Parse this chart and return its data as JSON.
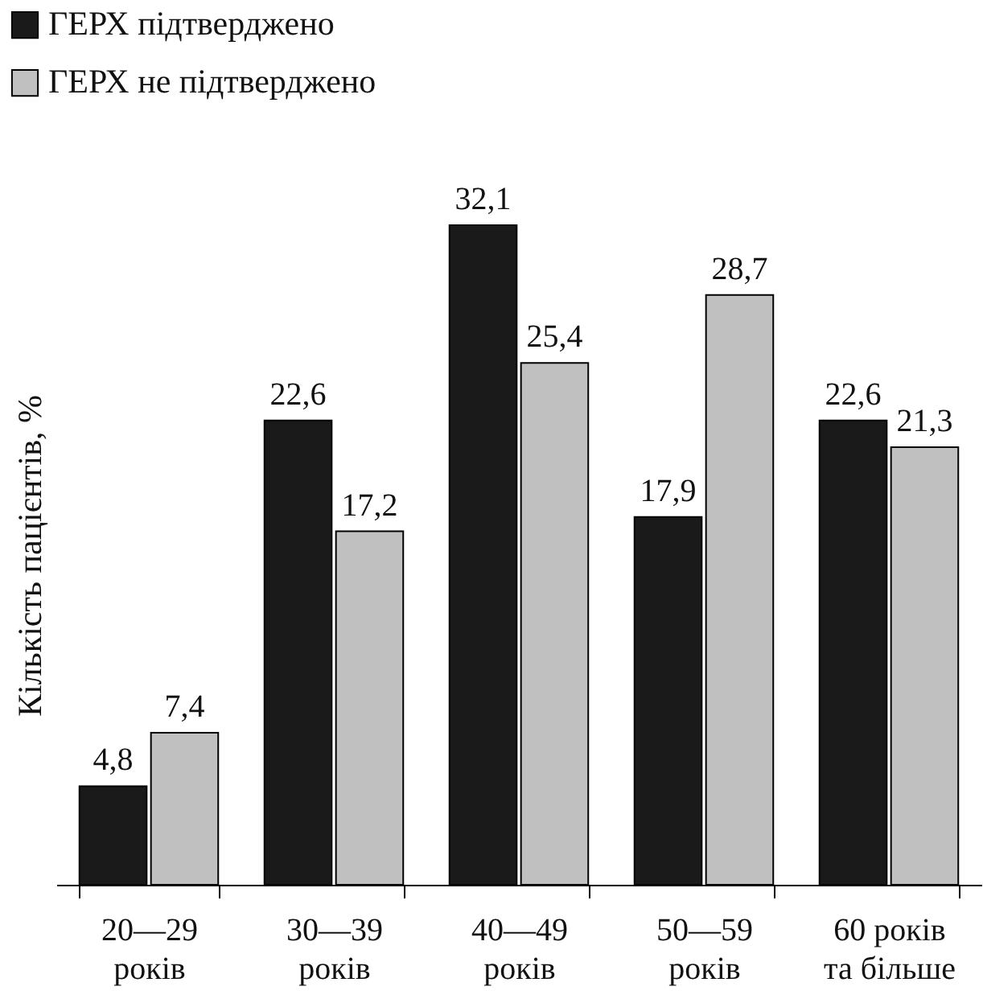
{
  "chart_data": {
    "type": "bar",
    "ylabel": "Кількість пацієнтів, %",
    "categories": [
      "20—29 років",
      "30—39 років",
      "40—49 років",
      "50—59 років",
      "60 років та більше"
    ],
    "series": [
      {
        "name": "ГЕРХ підтверджено",
        "color": "#1a1a1a",
        "values": [
          4.8,
          22.6,
          32.1,
          17.9,
          22.6
        ],
        "value_labels": [
          "4,8",
          "22,6",
          "32,1",
          "17,9",
          "22,6"
        ]
      },
      {
        "name": "ГЕРХ не підтверджено",
        "color": "#c0c0c0",
        "values": [
          7.4,
          17.2,
          25.4,
          28.7,
          21.3
        ],
        "value_labels": [
          "7,4",
          "17,2",
          "25,4",
          "28,7",
          "21,3"
        ]
      }
    ],
    "legend": "top left",
    "grid": false
  }
}
